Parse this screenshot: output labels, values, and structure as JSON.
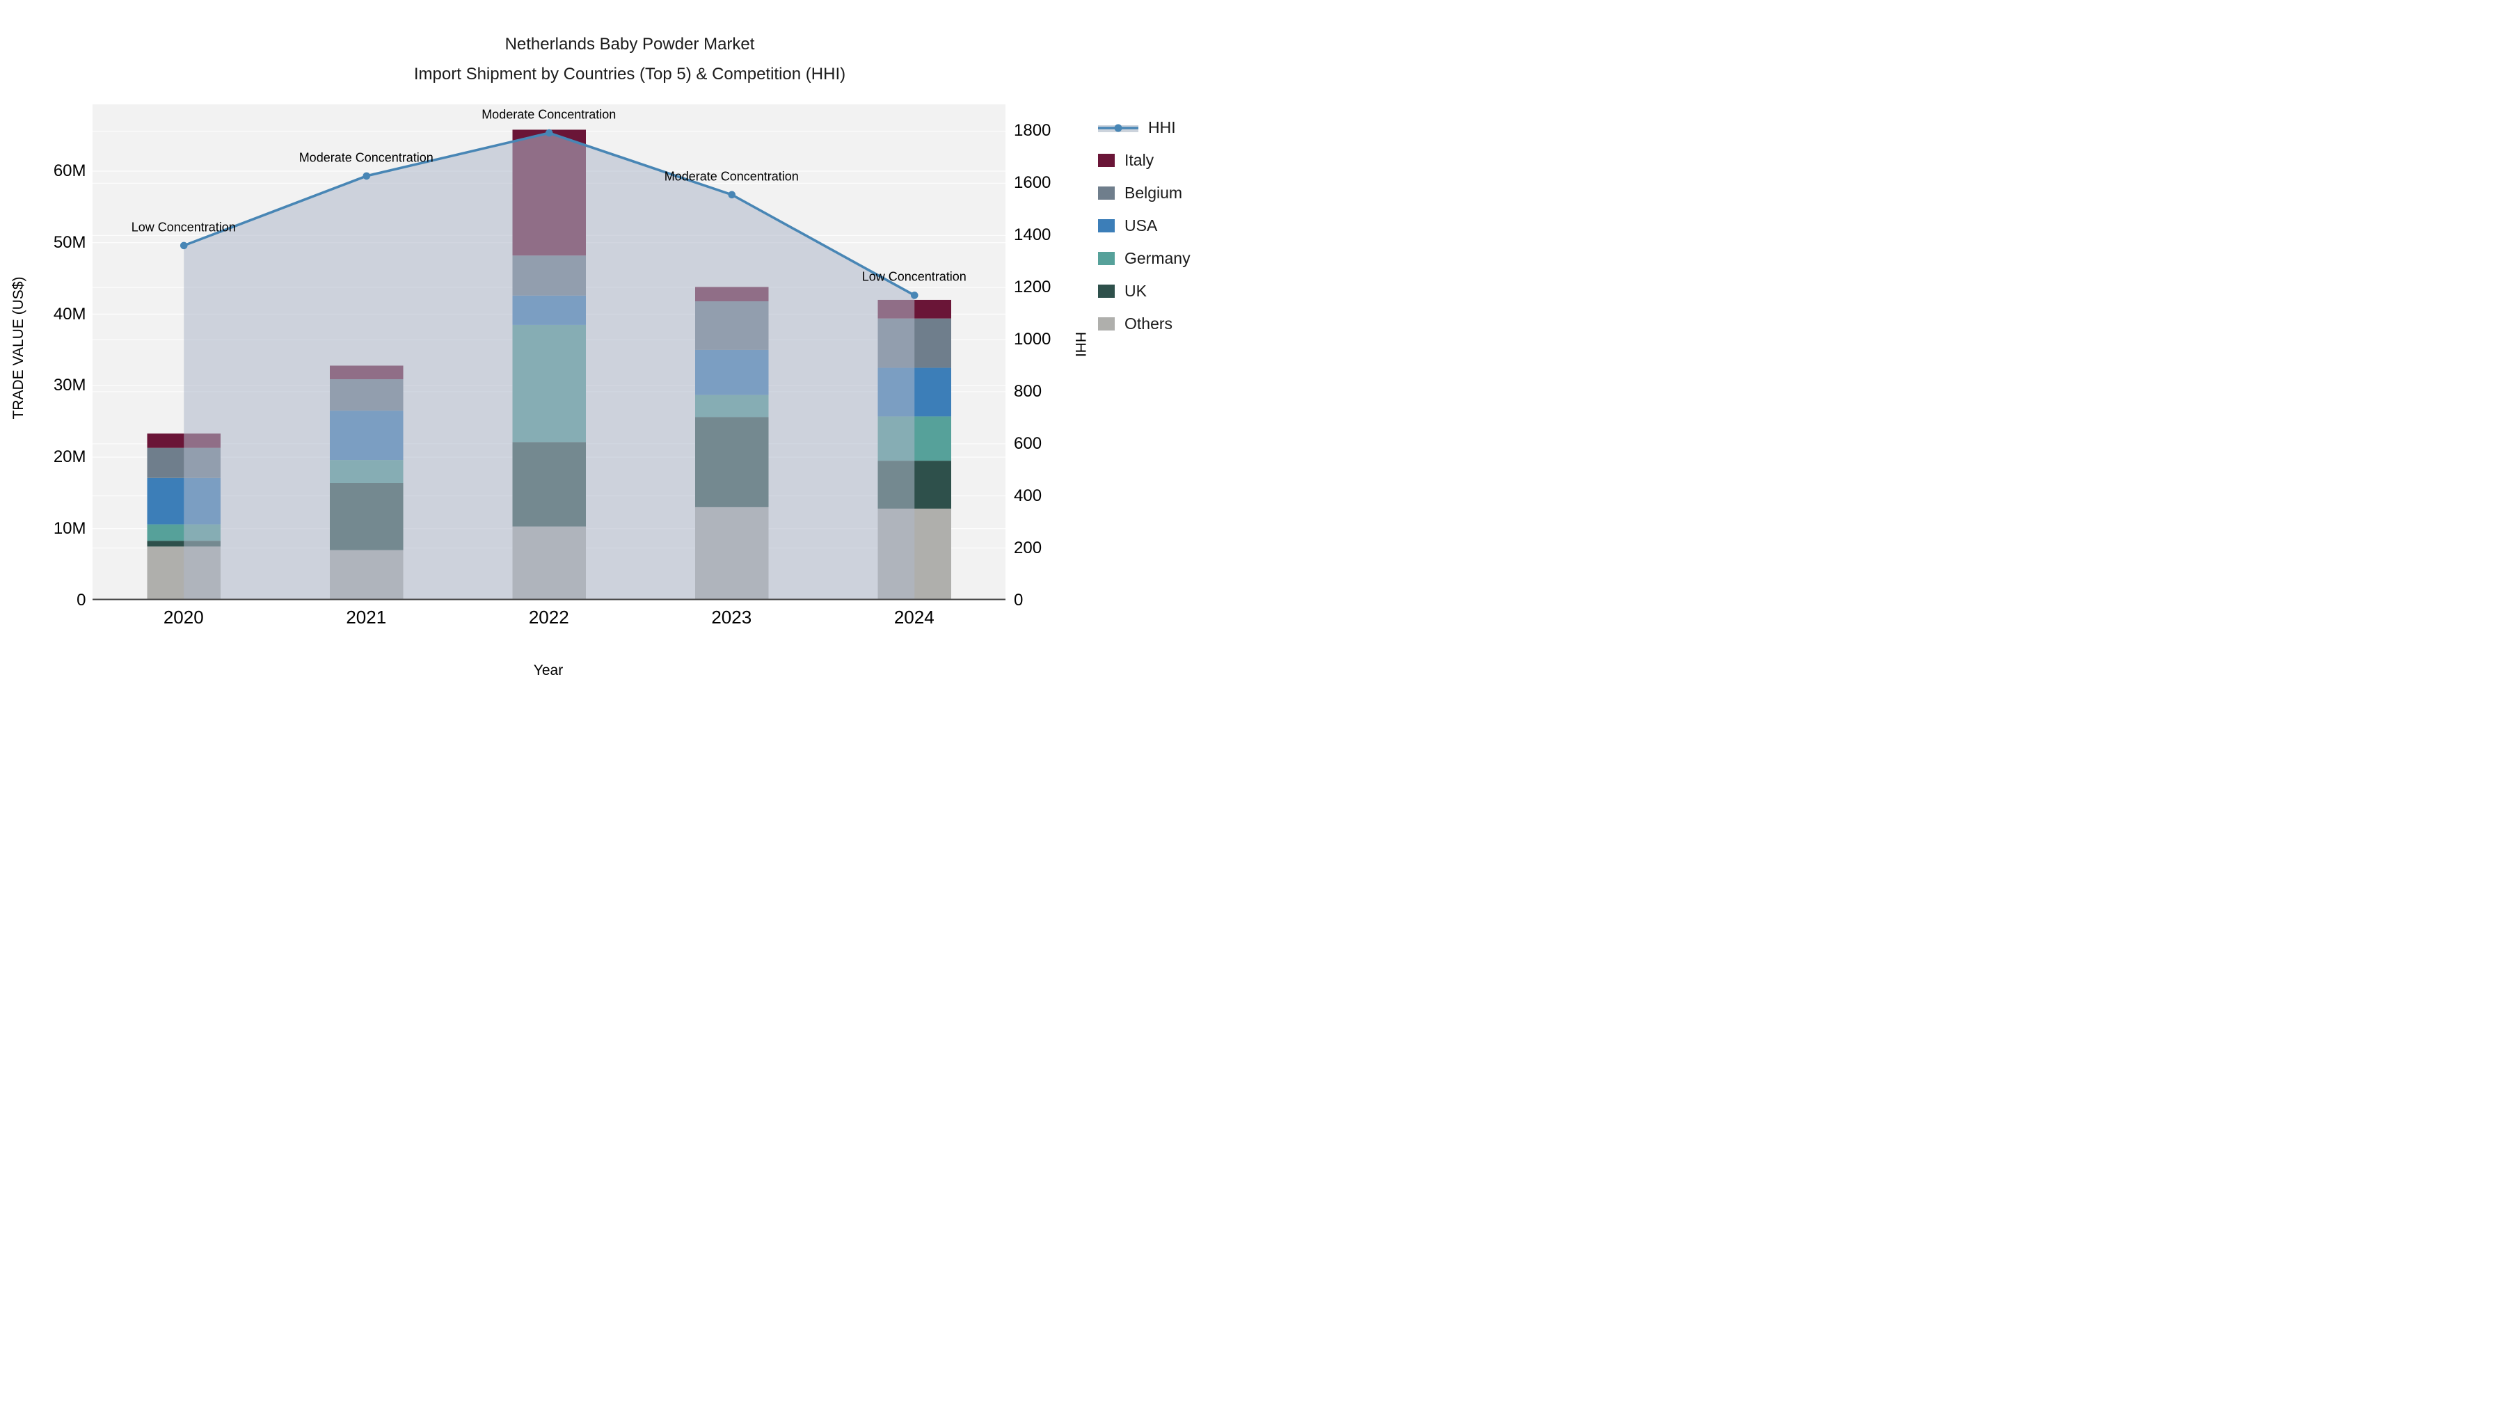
{
  "title": {
    "line1": "Netherlands Baby Powder Market",
    "line2": "Import Shipment by Countries (Top 5) & Competition (HHI)"
  },
  "axes": {
    "x": {
      "title": "Year",
      "categories": [
        "2020",
        "2021",
        "2022",
        "2023",
        "2024"
      ]
    },
    "y_left": {
      "title": "TRADE VALUE (US$)",
      "tick_labels": [
        "0",
        "10M",
        "20M",
        "30M",
        "40M",
        "50M",
        "60M"
      ],
      "tick_values_millions": [
        0,
        10,
        20,
        30,
        40,
        50,
        60
      ],
      "range_millions": [
        0,
        69.3
      ]
    },
    "y_right": {
      "title": "HHI",
      "tick_labels": [
        "0",
        "200",
        "400",
        "600",
        "800",
        "1000",
        "1200",
        "1400",
        "1600",
        "1800"
      ],
      "tick_values": [
        0,
        200,
        400,
        600,
        800,
        1000,
        1200,
        1400,
        1600,
        1800
      ],
      "range": [
        0,
        1903
      ]
    }
  },
  "legend": {
    "items": [
      {
        "label": "HHI",
        "kind": "line",
        "color": "#4886b5",
        "band_color": "#ccd3dc"
      },
      {
        "label": "Italy",
        "kind": "swatch",
        "color": "#6a1537"
      },
      {
        "label": "Belgium",
        "kind": "swatch",
        "color": "#6f7e8c"
      },
      {
        "label": "USA",
        "kind": "swatch",
        "color": "#3c7eb8"
      },
      {
        "label": "Germany",
        "kind": "swatch",
        "color": "#56a19a"
      },
      {
        "label": "UK",
        "kind": "swatch",
        "color": "#2e504b"
      },
      {
        "label": "Others",
        "kind": "swatch",
        "color": "#afafac"
      }
    ]
  },
  "chart_data": {
    "type": "combo-stacked-bar-line",
    "categories": [
      "2020",
      "2021",
      "2022",
      "2023",
      "2024"
    ],
    "bar_unit": "million US$",
    "stack_order_bottom_to_top": [
      "Others",
      "UK",
      "Germany",
      "USA",
      "Belgium",
      "Italy"
    ],
    "series": [
      {
        "name": "Others",
        "color": "#afafac",
        "values": [
          7.5,
          7.0,
          10.3,
          13.0,
          12.8
        ]
      },
      {
        "name": "UK",
        "color": "#2e504b",
        "values": [
          0.8,
          9.4,
          11.8,
          12.6,
          6.7
        ]
      },
      {
        "name": "Germany",
        "color": "#56a19a",
        "values": [
          2.3,
          3.2,
          16.4,
          3.1,
          6.2
        ]
      },
      {
        "name": "USA",
        "color": "#3c7eb8",
        "values": [
          6.5,
          6.9,
          4.1,
          6.3,
          6.8
        ]
      },
      {
        "name": "Belgium",
        "color": "#6f7e8c",
        "values": [
          4.2,
          4.4,
          5.6,
          6.8,
          6.9
        ]
      },
      {
        "name": "Italy",
        "color": "#6a1537",
        "values": [
          2.0,
          1.9,
          17.6,
          2.0,
          2.6
        ]
      }
    ],
    "bar_totals_millions": [
      23.3,
      32.8,
      65.8,
      43.8,
      42.0
    ],
    "line_series": {
      "name": "HHI",
      "axis": "right",
      "color": "#4886b5",
      "area_fill": "#afb8ca",
      "area_opacity": 0.55,
      "values": [
        1361,
        1628,
        1793,
        1556,
        1170
      ]
    },
    "annotations": [
      {
        "category": "2020",
        "text": "Low Concentration"
      },
      {
        "category": "2021",
        "text": "Moderate Concentration"
      },
      {
        "category": "2022",
        "text": "Moderate Concentration"
      },
      {
        "category": "2023",
        "text": "Moderate Concentration"
      },
      {
        "category": "2024",
        "text": "Low Concentration"
      }
    ],
    "plot_background": "#f2f2f2",
    "grid_color": "#ffffff",
    "axis_line_color": "#444444",
    "legend_position": "right",
    "grid_on": true
  }
}
